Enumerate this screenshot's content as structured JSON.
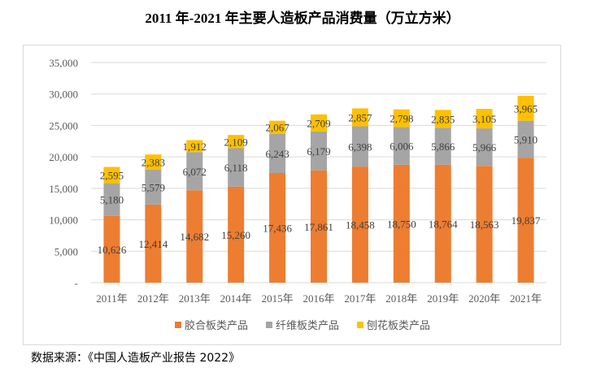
{
  "chart_data": {
    "type": "bar",
    "stacked": true,
    "title": "2011 年-2021 年主要人造板产品消费量（万立方米）",
    "categories": [
      "2011年",
      "2012年",
      "2013年",
      "2014年",
      "2015年",
      "2016年",
      "2017年",
      "2018年",
      "2019年",
      "2020年",
      "2021年"
    ],
    "series": [
      {
        "name": "胶合板类产品",
        "color": "#ED7D31",
        "values": [
          10626,
          12414,
          14682,
          15260,
          17436,
          17861,
          18458,
          18750,
          18764,
          18563,
          19837
        ]
      },
      {
        "name": "纤维板类产品",
        "color": "#A5A5A5",
        "values": [
          5180,
          5579,
          6072,
          6118,
          6243,
          6179,
          6398,
          6006,
          5866,
          5966,
          5910
        ]
      },
      {
        "name": "刨花板类产品",
        "color": "#FFC000",
        "values": [
          2595,
          2383,
          1912,
          2109,
          2067,
          2709,
          2857,
          2798,
          2835,
          3105,
          3965
        ]
      }
    ],
    "ylim": [
      0,
      35000
    ],
    "yticks": [
      "-",
      "5,000",
      "10,000",
      "15,000",
      "20,000",
      "25,000",
      "30,000",
      "35,000"
    ],
    "grid": true,
    "legend": "bottom"
  },
  "source": "数据来源：《中国人造板产业报告 2022》"
}
